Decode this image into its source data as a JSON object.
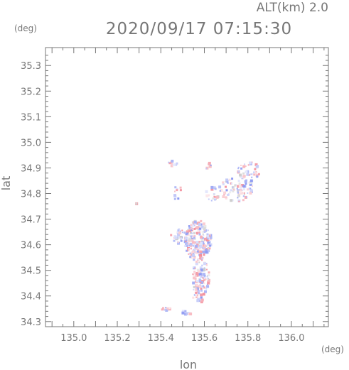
{
  "header": {
    "alt_label": "ALT(km)",
    "alt_value": "2.0",
    "timestamp": "2020/09/17 07:15:30"
  },
  "chart_data": {
    "type": "heatmap",
    "xlabel": "lon",
    "ylabel": "lat",
    "x_unit": "(deg)",
    "y_unit": "(deg)",
    "xlim": [
      134.87,
      136.17
    ],
    "ylim": [
      34.28,
      35.37
    ],
    "x_ticks": [
      "135.0",
      "135.2",
      "135.4",
      "135.6",
      "135.8",
      "136.0"
    ],
    "y_ticks": [
      "34.3",
      "34.4",
      "34.5",
      "34.6",
      "34.7",
      "34.8",
      "34.9",
      "35.0",
      "35.1",
      "35.2",
      "35.3"
    ],
    "grid": false,
    "colors": {
      "frame": "#777777",
      "positive": "#ee6677",
      "negative": "#6677ee",
      "dot": "#ee88cc"
    },
    "clusters": [
      {
        "lon": 135.565,
        "lat": 34.62,
        "rx": 0.06,
        "ry": 0.08,
        "n": 230
      },
      {
        "lon": 135.58,
        "lat": 34.48,
        "rx": 0.04,
        "ry": 0.07,
        "n": 110
      },
      {
        "lon": 135.48,
        "lat": 34.64,
        "rx": 0.04,
        "ry": 0.03,
        "n": 30
      },
      {
        "lon": 135.57,
        "lat": 34.41,
        "rx": 0.03,
        "ry": 0.03,
        "n": 24
      },
      {
        "lon": 135.74,
        "lat": 34.82,
        "rx": 0.08,
        "ry": 0.05,
        "n": 80
      },
      {
        "lon": 135.8,
        "lat": 34.89,
        "rx": 0.05,
        "ry": 0.04,
        "n": 45
      },
      {
        "lon": 135.45,
        "lat": 34.92,
        "rx": 0.02,
        "ry": 0.015,
        "n": 12
      },
      {
        "lon": 135.61,
        "lat": 34.91,
        "rx": 0.02,
        "ry": 0.015,
        "n": 8
      },
      {
        "lon": 135.63,
        "lat": 34.8,
        "rx": 0.03,
        "ry": 0.03,
        "n": 18
      },
      {
        "lon": 135.47,
        "lat": 34.81,
        "rx": 0.02,
        "ry": 0.03,
        "n": 10
      },
      {
        "lon": 135.42,
        "lat": 34.35,
        "rx": 0.02,
        "ry": 0.01,
        "n": 10
      },
      {
        "lon": 135.52,
        "lat": 34.34,
        "rx": 0.03,
        "ry": 0.01,
        "n": 10
      },
      {
        "lon": 135.28,
        "lat": 34.765,
        "rx": 0.005,
        "ry": 0.005,
        "n": 2
      }
    ]
  }
}
